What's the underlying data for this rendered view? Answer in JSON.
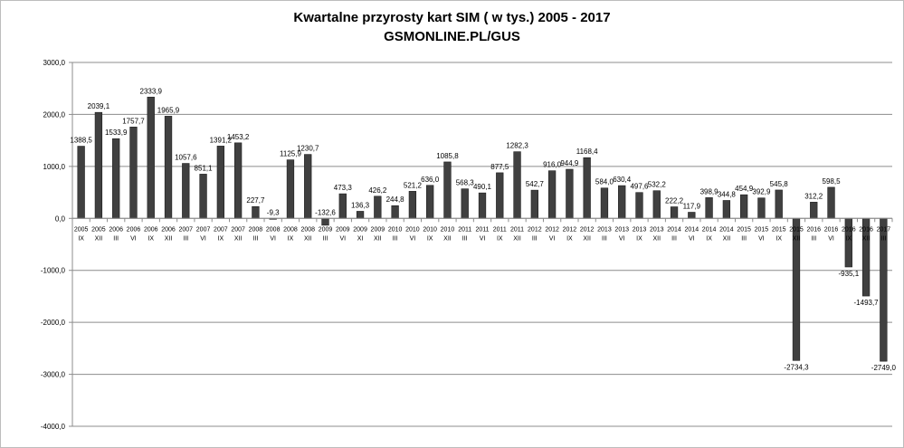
{
  "chart_data": {
    "type": "bar",
    "title": "Kwartalne przyrosty kart SIM  ( w tys.) 2005 - 2017",
    "subtitle": "GSMONLINE.PL/GUS",
    "xlabel": "",
    "ylabel": "",
    "ylim": [
      -4000,
      3000
    ],
    "yticks": [
      "3000,0",
      "2000,0",
      "1000,0",
      "0,0",
      "-1000,0",
      "-2000,0",
      "-3000,0",
      "-4000,0"
    ],
    "ytick_values": [
      3000,
      2000,
      1000,
      0,
      -1000,
      -2000,
      -3000,
      -4000
    ],
    "grid": true,
    "legend": "none",
    "bar_color": "#404040",
    "categories": [
      {
        "year": "2005",
        "quarter": "IX"
      },
      {
        "year": "2005",
        "quarter": "XII"
      },
      {
        "year": "2006",
        "quarter": "III"
      },
      {
        "year": "2006",
        "quarter": "VI"
      },
      {
        "year": "2006",
        "quarter": "IX"
      },
      {
        "year": "2006",
        "quarter": "XII"
      },
      {
        "year": "2007",
        "quarter": "III"
      },
      {
        "year": "2007",
        "quarter": "VI"
      },
      {
        "year": "2007",
        "quarter": "IX"
      },
      {
        "year": "2007",
        "quarter": "XII"
      },
      {
        "year": "2008",
        "quarter": "III"
      },
      {
        "year": "2008",
        "quarter": "VI"
      },
      {
        "year": "2008",
        "quarter": "IX"
      },
      {
        "year": "2008",
        "quarter": "XII"
      },
      {
        "year": "2009",
        "quarter": "III"
      },
      {
        "year": "2009",
        "quarter": "VI"
      },
      {
        "year": "2009",
        "quarter": "XI"
      },
      {
        "year": "2009",
        "quarter": "XII"
      },
      {
        "year": "2010",
        "quarter": "III"
      },
      {
        "year": "2010",
        "quarter": "VI"
      },
      {
        "year": "2010",
        "quarter": "IX"
      },
      {
        "year": "2010",
        "quarter": "XII"
      },
      {
        "year": "2011",
        "quarter": "III"
      },
      {
        "year": "2011",
        "quarter": "VI"
      },
      {
        "year": "2011",
        "quarter": "IX"
      },
      {
        "year": "2011",
        "quarter": "XII"
      },
      {
        "year": "2012",
        "quarter": "III"
      },
      {
        "year": "2012",
        "quarter": "VI"
      },
      {
        "year": "2012",
        "quarter": "IX"
      },
      {
        "year": "2012",
        "quarter": "XII"
      },
      {
        "year": "2013",
        "quarter": "III"
      },
      {
        "year": "2013",
        "quarter": "VI"
      },
      {
        "year": "2013",
        "quarter": "IX"
      },
      {
        "year": "2013",
        "quarter": "XII"
      },
      {
        "year": "2014",
        "quarter": "III"
      },
      {
        "year": "2014",
        "quarter": "VI"
      },
      {
        "year": "2014",
        "quarter": "IX"
      },
      {
        "year": "2014",
        "quarter": "XII"
      },
      {
        "year": "2015",
        "quarter": "III"
      },
      {
        "year": "2015",
        "quarter": "VI"
      },
      {
        "year": "2015",
        "quarter": "IX"
      },
      {
        "year": "2015",
        "quarter": "XII"
      },
      {
        "year": "2016",
        "quarter": "III"
      },
      {
        "year": "2016",
        "quarter": "VI"
      },
      {
        "year": "2016",
        "quarter": "IX"
      },
      {
        "year": "2016",
        "quarter": "XII"
      },
      {
        "year": "2017",
        "quarter": "III"
      }
    ],
    "values": [
      1388.5,
      2039.1,
      1533.9,
      1757.7,
      2333.9,
      1965.9,
      1057.6,
      851.1,
      1391.2,
      1453.2,
      227.7,
      -9.3,
      1125.9,
      1230.7,
      -132.6,
      473.3,
      136.3,
      426.2,
      244.8,
      521.2,
      636.0,
      1085.8,
      568.3,
      490.1,
      877.5,
      1282.3,
      542.7,
      916.0,
      944.9,
      1168.4,
      584.0,
      630.4,
      497.6,
      532.2,
      222.2,
      117.9,
      398.9,
      344.8,
      454.9,
      392.9,
      545.8,
      -2734.3,
      312.2,
      598.5,
      -935.1,
      -1493.7,
      -2749.0
    ],
    "data_labels": [
      "1388,5",
      "2039,1",
      "1533,9",
      "1757,7",
      "2333,9",
      "1965,9",
      "1057,6",
      "851,1",
      "1391,2",
      "1453,2",
      "227,7",
      "-9,3",
      "1125,9",
      "1230,7",
      "-132,6",
      "473,3",
      "136,3",
      "426,2",
      "244,8",
      "521,2",
      "636,0",
      "1085,8",
      "568,3",
      "490,1",
      "877,5",
      "1282,3",
      "542,7",
      "916,0",
      "944,9",
      "1168,4",
      "584,0",
      "630,4",
      "497,6",
      "532,2",
      "222,2",
      "117,9",
      "398,9",
      "344,8",
      "454,9",
      "392,9",
      "545,8",
      "-2734,3",
      "312,2",
      "598,5",
      "-935,1",
      "-1493,7",
      "-2749,0"
    ]
  }
}
